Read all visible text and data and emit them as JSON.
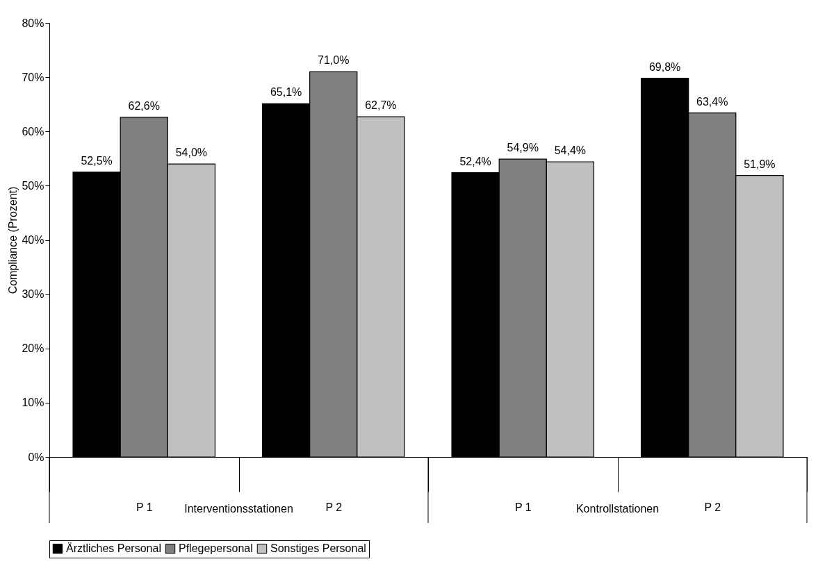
{
  "chart_data": {
    "type": "bar",
    "ylabel": "Compliance (Prozent)",
    "categories": [
      "P 1",
      "P 2",
      "P 1",
      "P 2"
    ],
    "annotations": [
      "Interventionsstationen",
      "Kontrollstationen"
    ],
    "series": [
      {
        "name": "Ärztliches Personal",
        "color": "#000000",
        "values": [
          52.5,
          65.1,
          52.4,
          69.8
        ],
        "value_labels": [
          "52,5%",
          "65,1%",
          "52,4%",
          "69,8%"
        ]
      },
      {
        "name": "Pflegepersonal",
        "color": "#808080",
        "values": [
          62.6,
          71.0,
          54.9,
          63.4
        ],
        "value_labels": [
          "62,6%",
          "71,0%",
          "54,9%",
          "63,4%"
        ]
      },
      {
        "name": "Sonstiges Personal",
        "color": "#c0c0c0",
        "values": [
          54.0,
          62.7,
          54.4,
          51.9
        ],
        "value_labels": [
          "54,0%",
          "62,7%",
          "54,4%",
          "51,9%"
        ]
      }
    ],
    "ylim": [
      0,
      80
    ],
    "yticks": [
      {
        "value": 0,
        "label": "0%"
      },
      {
        "value": 10,
        "label": "10%"
      },
      {
        "value": 20,
        "label": "20%"
      },
      {
        "value": 30,
        "label": "30%"
      },
      {
        "value": 40,
        "label": "40%"
      },
      {
        "value": 50,
        "label": "50%"
      },
      {
        "value": 60,
        "label": "60%"
      },
      {
        "value": 70,
        "label": "70%"
      },
      {
        "value": 80,
        "label": "80%"
      }
    ],
    "grid": false,
    "legend": "bottom"
  }
}
